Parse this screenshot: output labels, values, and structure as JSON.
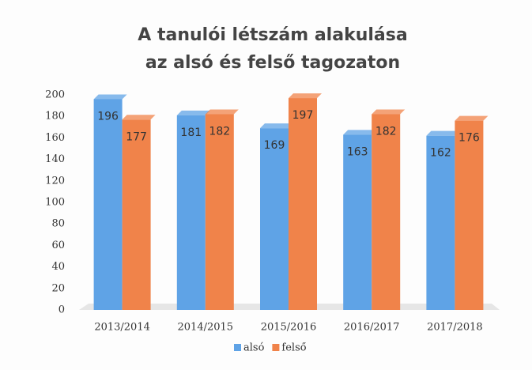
{
  "chart_data": {
    "type": "bar",
    "title": [
      "A tanulói létszám alakulása",
      "az alsó és felső tagozaton"
    ],
    "categories": [
      "2013/2014",
      "2014/2015",
      "2015/2016",
      "2016/2017",
      "2017/2018"
    ],
    "series": [
      {
        "name": "alsó",
        "color": "#5fa3e6",
        "values": [
          196,
          181,
          169,
          163,
          162
        ]
      },
      {
        "name": "felső",
        "color": "#f0834a",
        "values": [
          177,
          182,
          197,
          182,
          176
        ]
      }
    ],
    "ylim": [
      0,
      200
    ],
    "yticks": [
      0,
      20,
      40,
      60,
      80,
      100,
      120,
      140,
      160,
      180,
      200
    ],
    "grid": false,
    "legend": "bottom"
  }
}
